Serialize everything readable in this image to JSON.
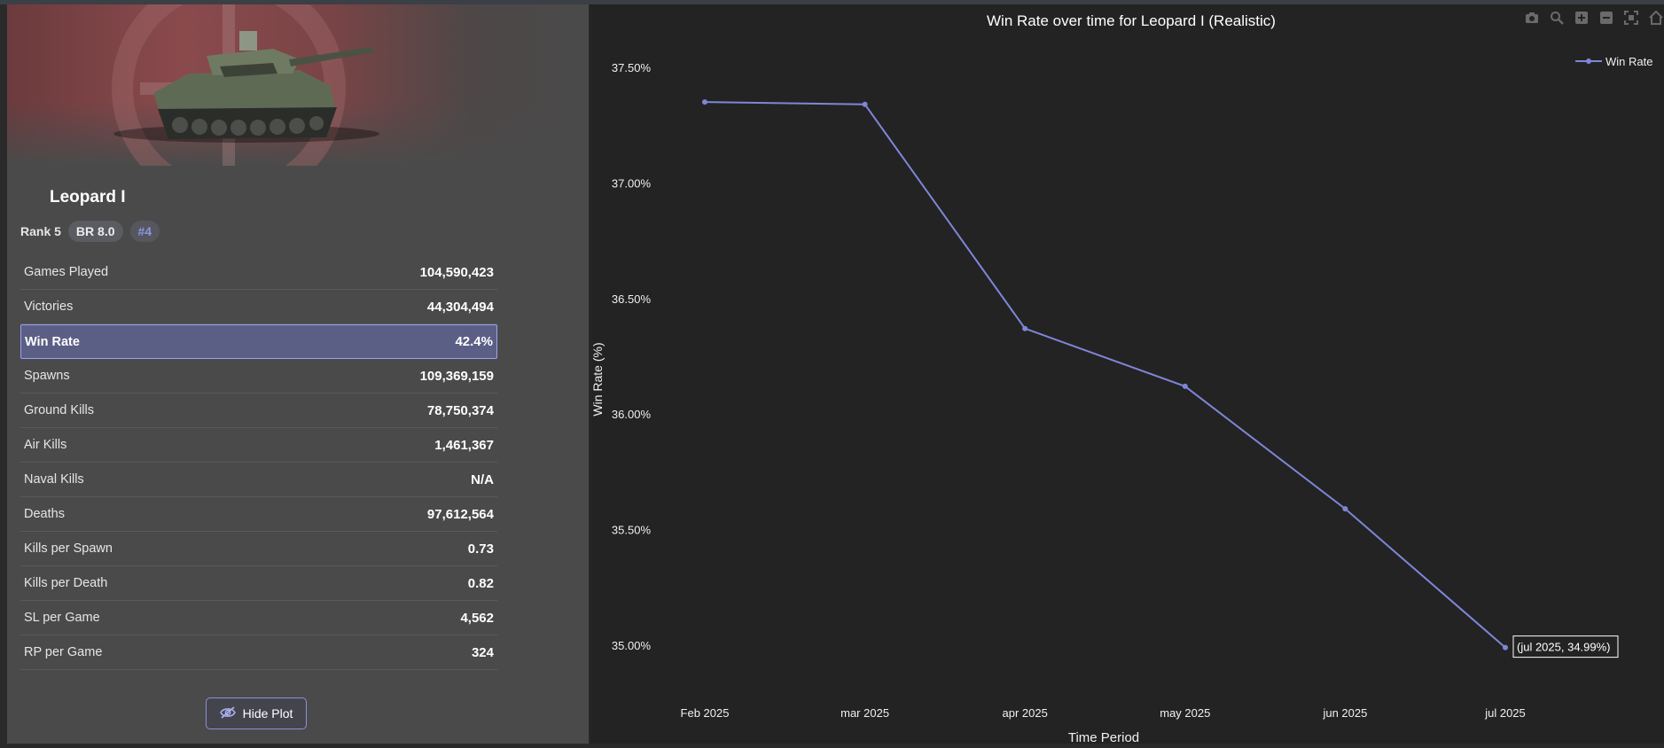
{
  "vehicle": {
    "name": "Leopard I",
    "rank": "Rank 5",
    "br": "BR 8.0",
    "position": "#4"
  },
  "stats": [
    {
      "label": "Games Played",
      "value": "104,590,423"
    },
    {
      "label": "Victories",
      "value": "44,304,494"
    },
    {
      "label": "Win Rate",
      "value": "42.4%",
      "highlighted": true
    },
    {
      "label": "Spawns",
      "value": "109,369,159"
    },
    {
      "label": "Ground Kills",
      "value": "78,750,374"
    },
    {
      "label": "Air Kills",
      "value": "1,461,367"
    },
    {
      "label": "Naval Kills",
      "value": "N/A"
    },
    {
      "label": "Deaths",
      "value": "97,612,564"
    },
    {
      "label": "Kills per Spawn",
      "value": "0.73"
    },
    {
      "label": "Kills per Death",
      "value": "0.82"
    },
    {
      "label": "SL per Game",
      "value": "4,562"
    },
    {
      "label": "RP per Game",
      "value": "324"
    }
  ],
  "hide_plot_label": "Hide Plot",
  "modebar": [
    "camera-icon",
    "zoom-icon",
    "zoom-in-icon",
    "zoom-out-icon",
    "autoscale-icon",
    "home-icon"
  ],
  "colors": {
    "series": "#7f86d8",
    "accent": "#8a90d6"
  },
  "chart_data": {
    "type": "line",
    "title": "Win Rate over time for Leopard I (Realistic)",
    "xlabel": "Time Period",
    "ylabel": "Win Rate (%)",
    "categories": [
      "Feb 2025",
      "mar 2025",
      "apr 2025",
      "may 2025",
      "jun 2025",
      "jul 2025"
    ],
    "series": [
      {
        "name": "Win Rate",
        "values": [
          37.35,
          37.34,
          36.37,
          36.12,
          35.59,
          34.99
        ]
      }
    ],
    "yticks": [
      35.0,
      35.5,
      36.0,
      36.5,
      37.0,
      37.5
    ],
    "ytick_labels": [
      "35.00%",
      "35.50%",
      "36.00%",
      "36.50%",
      "37.00%",
      "37.50%"
    ],
    "ylim": [
      34.8,
      37.55
    ],
    "legend": "top-right",
    "grid": false,
    "hover_label": "(jul 2025, 34.99%)"
  }
}
